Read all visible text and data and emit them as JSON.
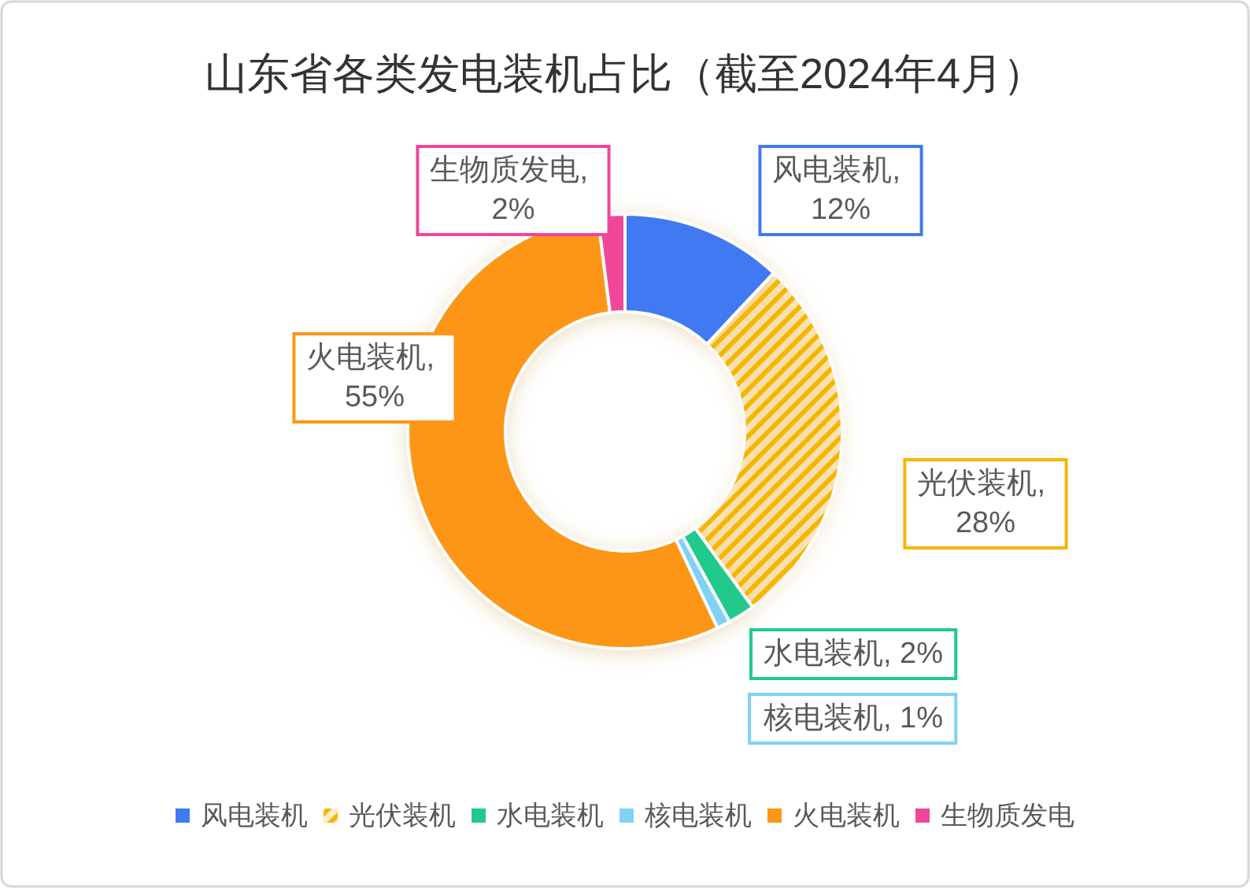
{
  "chart_data": {
    "type": "donut",
    "title": "山东省各类发电装机占比（截至2024年4月）",
    "categories": [
      "风电装机",
      "光伏装机",
      "水电装机",
      "核电装机",
      "火电装机",
      "生物质发电"
    ],
    "values": [
      12,
      28,
      2,
      1,
      55,
      2
    ],
    "colors": [
      "#4079f2",
      "#f6b500",
      "#22c98c",
      "#80d2f5",
      "#fd9614",
      "#f0469a"
    ],
    "value_labels": [
      "风电装机, 12%",
      "光伏装机, 28%",
      "水电装机, 2%",
      "核电装机, 1%",
      "火电装机, 55%",
      "生物质发电, 2%"
    ],
    "legend": "bottom"
  }
}
